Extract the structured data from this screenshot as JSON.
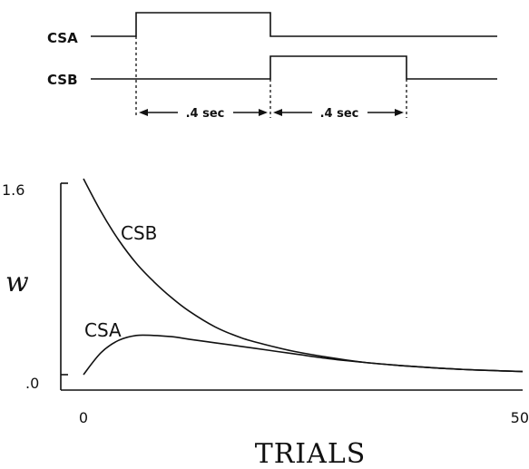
{
  "timing": {
    "signals": [
      {
        "name": "CSA",
        "on_segment": 1
      },
      {
        "name": "CSB",
        "on_segment": 2
      }
    ],
    "intervals": [
      ".4 sec",
      ".4 sec"
    ]
  },
  "chart_data": {
    "type": "line",
    "xlabel": "TRIALS",
    "ylabel": "w",
    "xlim": [
      0,
      50
    ],
    "ylim": [
      0,
      1.6
    ],
    "x_ticks": [
      "0",
      "50"
    ],
    "y_ticks": [
      ".0",
      "1.6"
    ],
    "x": [
      0,
      2,
      4,
      6,
      8,
      10,
      12,
      15,
      18,
      21,
      24,
      28,
      32,
      36,
      40,
      44,
      48,
      50
    ],
    "series": [
      {
        "name": "CSB",
        "values": [
          1.6,
          1.33,
          1.1,
          0.91,
          0.76,
          0.63,
          0.52,
          0.39,
          0.3,
          0.24,
          0.19,
          0.14,
          0.1,
          0.075,
          0.055,
          0.04,
          0.03,
          0.025
        ]
      },
      {
        "name": "CSA",
        "values": [
          0.0,
          0.18,
          0.28,
          0.32,
          0.32,
          0.31,
          0.29,
          0.26,
          0.23,
          0.2,
          0.17,
          0.13,
          0.1,
          0.075,
          0.055,
          0.04,
          0.03,
          0.025
        ]
      }
    ]
  }
}
